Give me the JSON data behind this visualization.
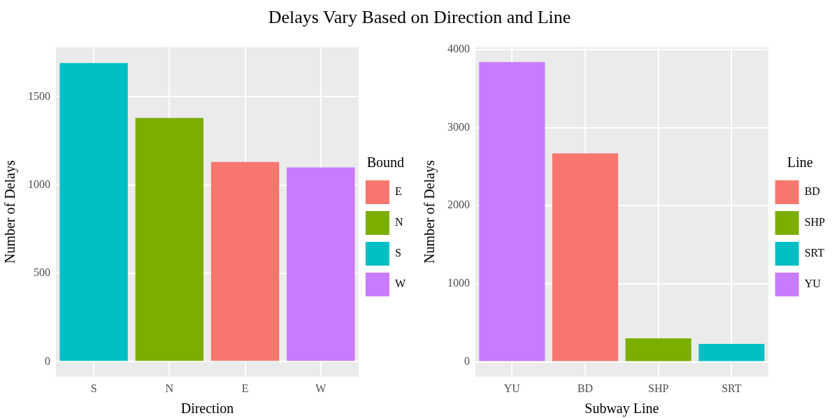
{
  "chart_data": [
    {
      "type": "bar",
      "title": "Delays Vary Based on Direction and Line",
      "xlabel": "Direction",
      "ylabel": "Number of Delays",
      "legend_title": "Bound",
      "categories": [
        "S",
        "N",
        "E",
        "W"
      ],
      "series": [
        {
          "name": "E",
          "color": "#f8766d",
          "values": [
            null,
            null,
            1130,
            null
          ]
        },
        {
          "name": "N",
          "color": "#7cae00",
          "values": [
            null,
            1380,
            null,
            null
          ]
        },
        {
          "name": "S",
          "color": "#00bfc4",
          "values": [
            1690,
            null,
            null,
            null
          ]
        },
        {
          "name": "W",
          "color": "#c77cff",
          "values": [
            null,
            null,
            null,
            1100
          ]
        }
      ],
      "ylim": [
        -85,
        1780
      ],
      "yticks": [
        0,
        500,
        1000,
        1500
      ],
      "grid": true,
      "legend": "right"
    },
    {
      "type": "bar",
      "xlabel": "Subway Line",
      "ylabel": "Number of Delays",
      "legend_title": "Line",
      "categories": [
        "YU",
        "BD",
        "SHP",
        "SRT"
      ],
      "series": [
        {
          "name": "BD",
          "color": "#f8766d",
          "values": [
            null,
            2670,
            null,
            null
          ]
        },
        {
          "name": "SHP",
          "color": "#7cae00",
          "values": [
            null,
            null,
            300,
            null
          ]
        },
        {
          "name": "SRT",
          "color": "#00bfc4",
          "values": [
            null,
            null,
            null,
            230
          ]
        },
        {
          "name": "YU",
          "color": "#c77cff",
          "values": [
            3840,
            null,
            null,
            null
          ]
        }
      ],
      "ylim": [
        -190,
        4030
      ],
      "yticks": [
        0,
        1000,
        2000,
        3000,
        4000
      ],
      "grid": true,
      "legend": "right"
    }
  ]
}
